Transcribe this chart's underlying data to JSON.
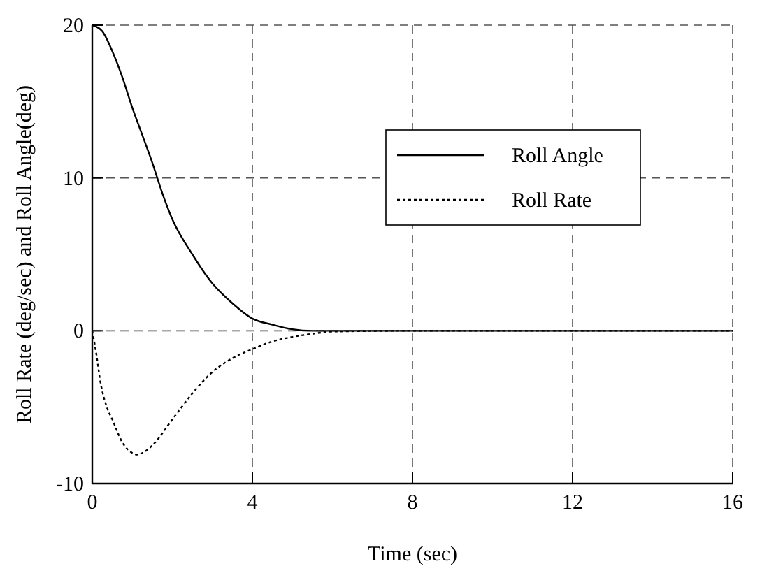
{
  "chart_data": {
    "type": "line",
    "xlabel": "Time (sec)",
    "ylabel": "Roll Rate (deg/sec) and Roll Angle(deg)",
    "xlim": [
      0,
      16
    ],
    "xticks": [
      0,
      4,
      8,
      12,
      16
    ],
    "ylim": [
      -10,
      20
    ],
    "yticks": [
      -10,
      0,
      10,
      20
    ],
    "grid": true,
    "legend": "top right",
    "marker": "none",
    "series": [
      {
        "name": "Roll Angle",
        "color": "#000000",
        "line_style": "solid",
        "x": [
          0,
          0.25,
          0.5,
          0.75,
          1,
          1.25,
          1.5,
          1.75,
          2,
          2.5,
          3,
          3.5,
          4,
          4.5,
          5,
          5.5,
          6,
          8,
          12,
          16
        ],
        "values": [
          20,
          19.6,
          18.3,
          16.6,
          14.6,
          12.8,
          11,
          9,
          7.3,
          5,
          3.1,
          1.8,
          0.8,
          0.4,
          0.1,
          0,
          0,
          0,
          0,
          0
        ]
      },
      {
        "name": "Roll Rate",
        "color": "#000000",
        "line_style": "dotted",
        "x": [
          0,
          0.1,
          0.2,
          0.35,
          0.5,
          0.75,
          1,
          1.1,
          1.25,
          1.5,
          2,
          2.5,
          3,
          3.5,
          4,
          4.5,
          5,
          5.5,
          6,
          8,
          12,
          16
        ],
        "values": [
          0,
          -1.5,
          -3.3,
          -4.9,
          -5.8,
          -7.3,
          -8,
          -8.1,
          -8,
          -7.5,
          -5.8,
          -4.1,
          -2.7,
          -1.8,
          -1.2,
          -0.7,
          -0.4,
          -0.2,
          -0.05,
          0,
          0,
          0
        ]
      }
    ]
  }
}
